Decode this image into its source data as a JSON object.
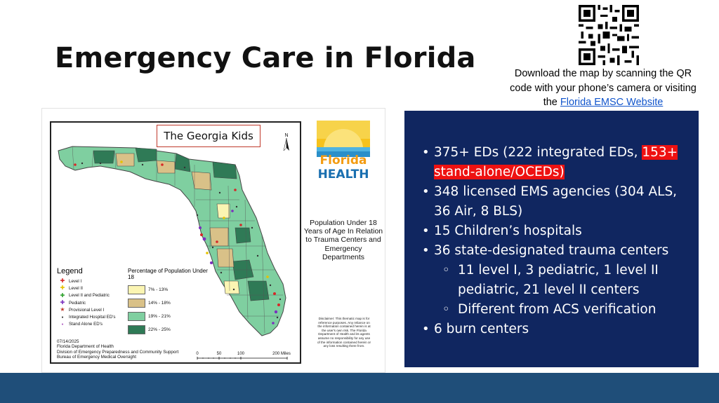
{
  "slide": {
    "title": "Emergency Care in Florida"
  },
  "qr": {
    "caption_line1": "Download the map by scanning the QR code with your phone’s camera or visiting the",
    "link_text": "Florida EMSC Website "
  },
  "map": {
    "badge": "The Georgia Kids",
    "north": "N",
    "logo": {
      "word1": "Florida",
      "word2": "HEALTH"
    },
    "population_title": "Population Under 18 Years of Age In Relation to Trauma Centers and Emergency Departments",
    "legend_title": "Legend",
    "legend_items": [
      {
        "symbol": "✚",
        "color": "#d62728",
        "label": "Level I"
      },
      {
        "symbol": "✚",
        "color": "#e6c200",
        "label": "Level II"
      },
      {
        "symbol": "✚",
        "color": "#2ca02c",
        "label": "Level II and Pediatric"
      },
      {
        "symbol": "✚",
        "color": "#7b2fbe",
        "label": "Pediatric"
      },
      {
        "symbol": "★",
        "color": "#c0392b",
        "label": "Provisional Level I"
      },
      {
        "symbol": "●",
        "color": "#333333",
        "label": "Integrated Hospital ED's"
      },
      {
        "symbol": "●",
        "color": "#b05fc2",
        "label": "Stand Alone ED's"
      }
    ],
    "pct_title": "Percentage of Population Under 18",
    "pct_items": [
      {
        "label": "7% - 13%",
        "color": "#fbf5b3"
      },
      {
        "label": "14% - 18%",
        "color": "#d9c188"
      },
      {
        "label": "19% - 21%",
        "color": "#7fcfa0"
      },
      {
        "label": "22% - 25%",
        "color": "#2f7a56"
      }
    ],
    "date": "07/14/2025",
    "org_line1": "Florida Department of Health",
    "org_line2": "Division of Emergency Preparedness and Community Support",
    "org_line3": "Bureau of Emergency Medical Oversight",
    "scale": {
      "t0": "0",
      "t1": "50",
      "t2": "100",
      "t3": "200 Miles"
    },
    "disclaimer": "Disclaimer: This thematic map is for reference purposes. Any reliance on the information contained herein is at the user's own risk. The Florida Department of Health and its agents assume no responsibility for any use of the information contained herein or any loss resulting there from."
  },
  "panel": {
    "b1_pre": "375+ EDs (222 integrated EDs, ",
    "b1_highlight": "153+ stand-alone/OCEDs)",
    "b2": "348 licensed EMS agencies (304 ALS, 36 Air, 8 BLS)",
    "b3": "15 Children’s hospitals",
    "b4": "36 state-designated trauma centers",
    "s1": "11 level I, 3 pediatric, 1 level II pediatric, 21 level II centers",
    "s2": "Different from ACS verification",
    "b5": "6 burn centers"
  },
  "colors": {
    "panel_bg": "#102660",
    "highlight": "#ee1111",
    "footer": "#1f4e79",
    "link": "#1155cc"
  }
}
